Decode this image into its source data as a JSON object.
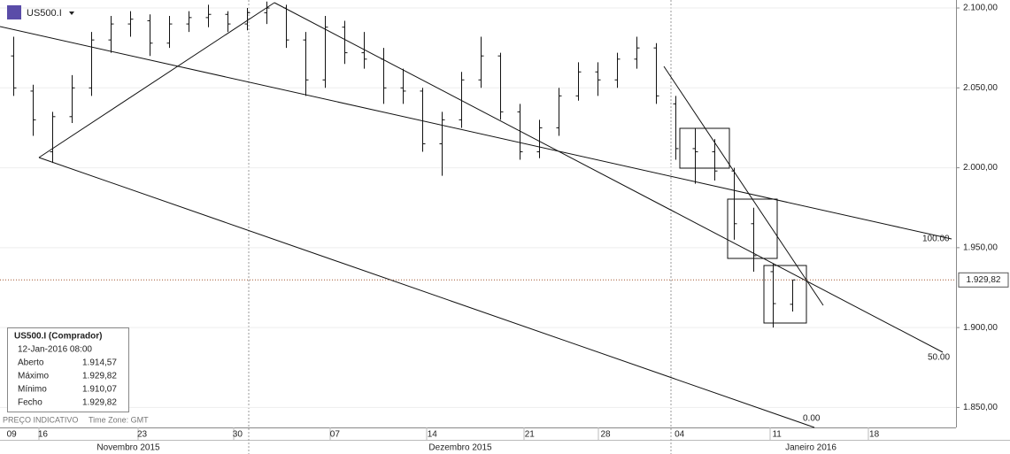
{
  "chart_data": {
    "type": "ohlc",
    "symbol": "US500.I",
    "x": [
      -1.5,
      -0.5,
      0.5,
      1.5,
      2.5,
      3.5,
      4.5,
      5.5,
      6.5,
      7.5,
      8.5,
      9.5,
      10.5,
      11.5,
      12.5,
      13.5,
      14.5,
      15.5,
      16.5,
      17.5,
      18.5,
      19.5,
      20.5,
      21.5,
      22.5,
      23.5,
      24.5,
      25.5,
      26.5,
      27.5,
      28.5,
      29.5,
      30.5,
      31.5,
      32.5,
      33.5,
      34.5,
      35.5,
      36.5,
      37.5,
      38.5
    ],
    "series": [
      {
        "name": "US500.I",
        "color": "#111111",
        "open": [
          2070,
          2048,
          2010,
          2032,
          2050,
          2080,
          2090,
          2092,
          2078,
          2090,
          2094,
          2096,
          2090,
          2097,
          2100,
          2080,
          2055,
          2088,
          2072,
          2068,
          2050,
          2048,
          2015,
          2030,
          2055,
          2070,
          2035,
          2010,
          2025,
          2045,
          2060,
          2055,
          2068,
          2075,
          2040,
          2012,
          2010,
          1998,
          1965,
          1935,
          1914.57
        ],
        "high": [
          2082,
          2052,
          2035,
          2058,
          2085,
          2095,
          2098,
          2096,
          2095,
          2098,
          2102,
          2098,
          2100,
          2104,
          2102,
          2085,
          2095,
          2092,
          2085,
          2075,
          2062,
          2050,
          2035,
          2060,
          2082,
          2072,
          2040,
          2030,
          2050,
          2066,
          2066,
          2072,
          2082,
          2078,
          2045,
          2025,
          2018,
          2000,
          1975,
          1940,
          1929.82
        ],
        "low": [
          2045,
          2020,
          2003,
          2028,
          2045,
          2072,
          2082,
          2070,
          2075,
          2085,
          2088,
          2085,
          2086,
          2090,
          2075,
          2045,
          2050,
          2065,
          2062,
          2040,
          2040,
          2010,
          1995,
          2025,
          2050,
          2030,
          2005,
          2006,
          2020,
          2042,
          2045,
          2050,
          2062,
          2040,
          2005,
          1990,
          1992,
          1955,
          1935,
          1900,
          1910.07
        ],
        "close": [
          2050,
          2030,
          2032,
          2050,
          2080,
          2090,
          2093,
          2078,
          2090,
          2094,
          2096,
          2090,
          2097,
          2100,
          2080,
          2055,
          2088,
          2072,
          2068,
          2050,
          2048,
          2015,
          2030,
          2055,
          2070,
          2035,
          2010,
          2025,
          2045,
          2060,
          2055,
          2068,
          2075,
          2045,
          2012,
          2010,
          1998,
          1965,
          1945,
          1915,
          1929.82
        ]
      }
    ],
    "xlim": [
      -2.2,
      46.9
    ],
    "xticks": [
      {
        "value": -1.6,
        "label": "09"
      },
      {
        "value": 0,
        "label": "16"
      },
      {
        "value": 5.1,
        "label": "23"
      },
      {
        "value": 10,
        "label": "30"
      },
      {
        "value": 15,
        "label": "07"
      },
      {
        "value": 20,
        "label": "14"
      },
      {
        "value": 25,
        "label": "21"
      },
      {
        "value": 28.9,
        "label": "28"
      },
      {
        "value": 32.7,
        "label": "04"
      },
      {
        "value": 37.7,
        "label": "11"
      },
      {
        "value": 42.7,
        "label": "18"
      }
    ],
    "months": [
      "Novembro 2015",
      "Dezembro 2015",
      "Janeiro 2016"
    ],
    "ylim": [
      1837.5,
      2105
    ],
    "yticks": [
      {
        "value": 1850,
        "label": "1.850,00"
      },
      {
        "value": 1900,
        "label": "1.900,00"
      },
      {
        "value": 1950,
        "label": "1.950,00"
      },
      {
        "value": 2000,
        "label": "2.000,00"
      },
      {
        "value": 2050,
        "label": "2.050,00"
      },
      {
        "value": 2100,
        "label": "2.100,00"
      }
    ],
    "current_price": {
      "value": 1929.82,
      "label": "1.929,82"
    },
    "fib_labels": [
      "100.00",
      "50.00",
      "0.00"
    ],
    "info": {
      "title": "US500.I (Comprador)",
      "date": "12-Jan-2016 08:00",
      "rows": [
        [
          "Aberto",
          "1.914,57"
        ],
        [
          "Máximo",
          "1.929,82"
        ],
        [
          "Mínimo",
          "1.910,07"
        ],
        [
          "Fecho",
          "1.929,82"
        ]
      ]
    },
    "footer": [
      "PREÇO INDICATIVO",
      "Time Zone: GMT"
    ]
  }
}
